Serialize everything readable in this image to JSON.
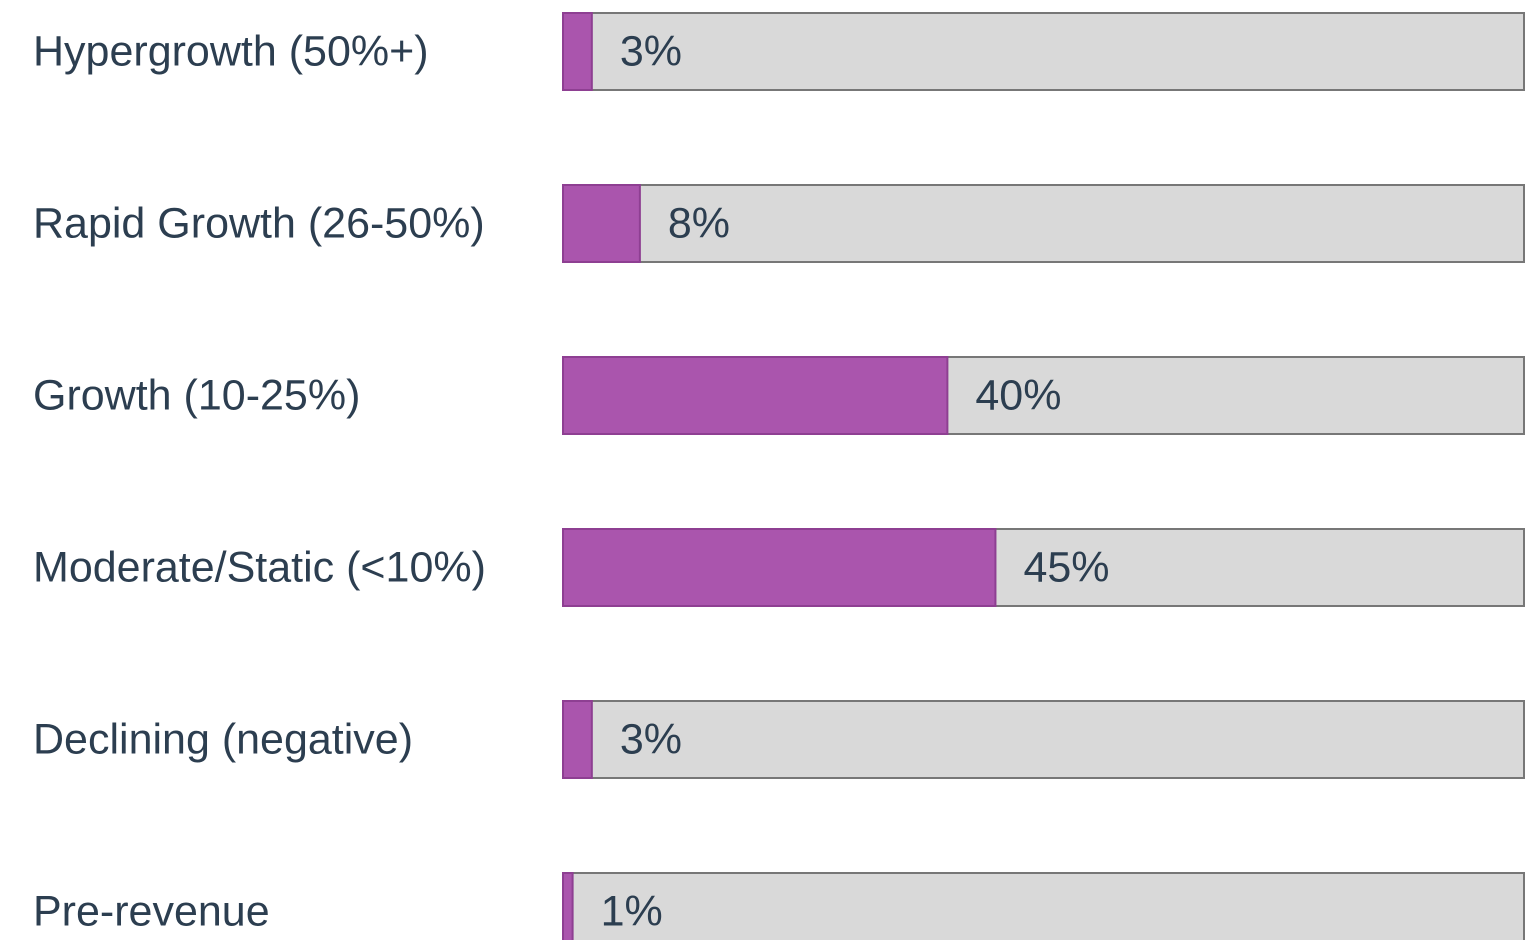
{
  "chart_data": {
    "type": "bar",
    "orientation": "horizontal",
    "categories": [
      "Hypergrowth (50%+)",
      "Rapid Growth (26-50%)",
      "Growth (10-25%)",
      "Moderate/Static (<10%)",
      "Declining (negative)",
      "Pre-revenue"
    ],
    "values": [
      3,
      8,
      40,
      45,
      3,
      1
    ],
    "value_labels": [
      "3%",
      "8%",
      "40%",
      "45%",
      "3%",
      "1%"
    ],
    "color": "#aa55ad",
    "track_color": "#d9d9d9",
    "xlim": [
      0,
      100
    ]
  }
}
